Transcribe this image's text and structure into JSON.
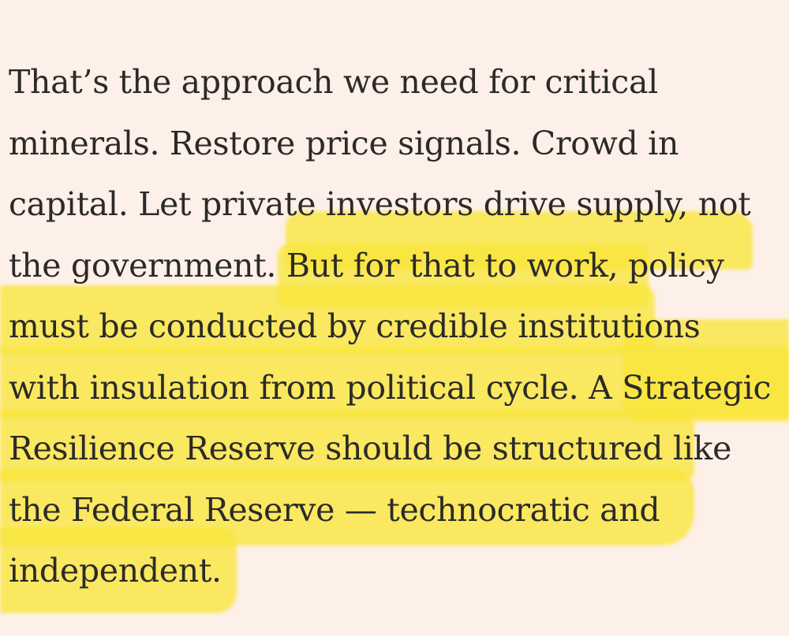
{
  "article": {
    "lines": [
      "That’s the approach we need for critical",
      "minerals. Restore price signals. Crowd in",
      "capital. Let private investors drive supply, not",
      "the government. But for that to work, policy",
      "must be conducted by credible institutions",
      "with insulation from political cycle. A Strategic",
      "Resilience Reserve should be structured like",
      "the Federal Reserve — technocratic and",
      "independent."
    ],
    "highlight_color": "#f9e63a",
    "text_color": "#2c2a28",
    "background_color": "#fdf0e8"
  }
}
